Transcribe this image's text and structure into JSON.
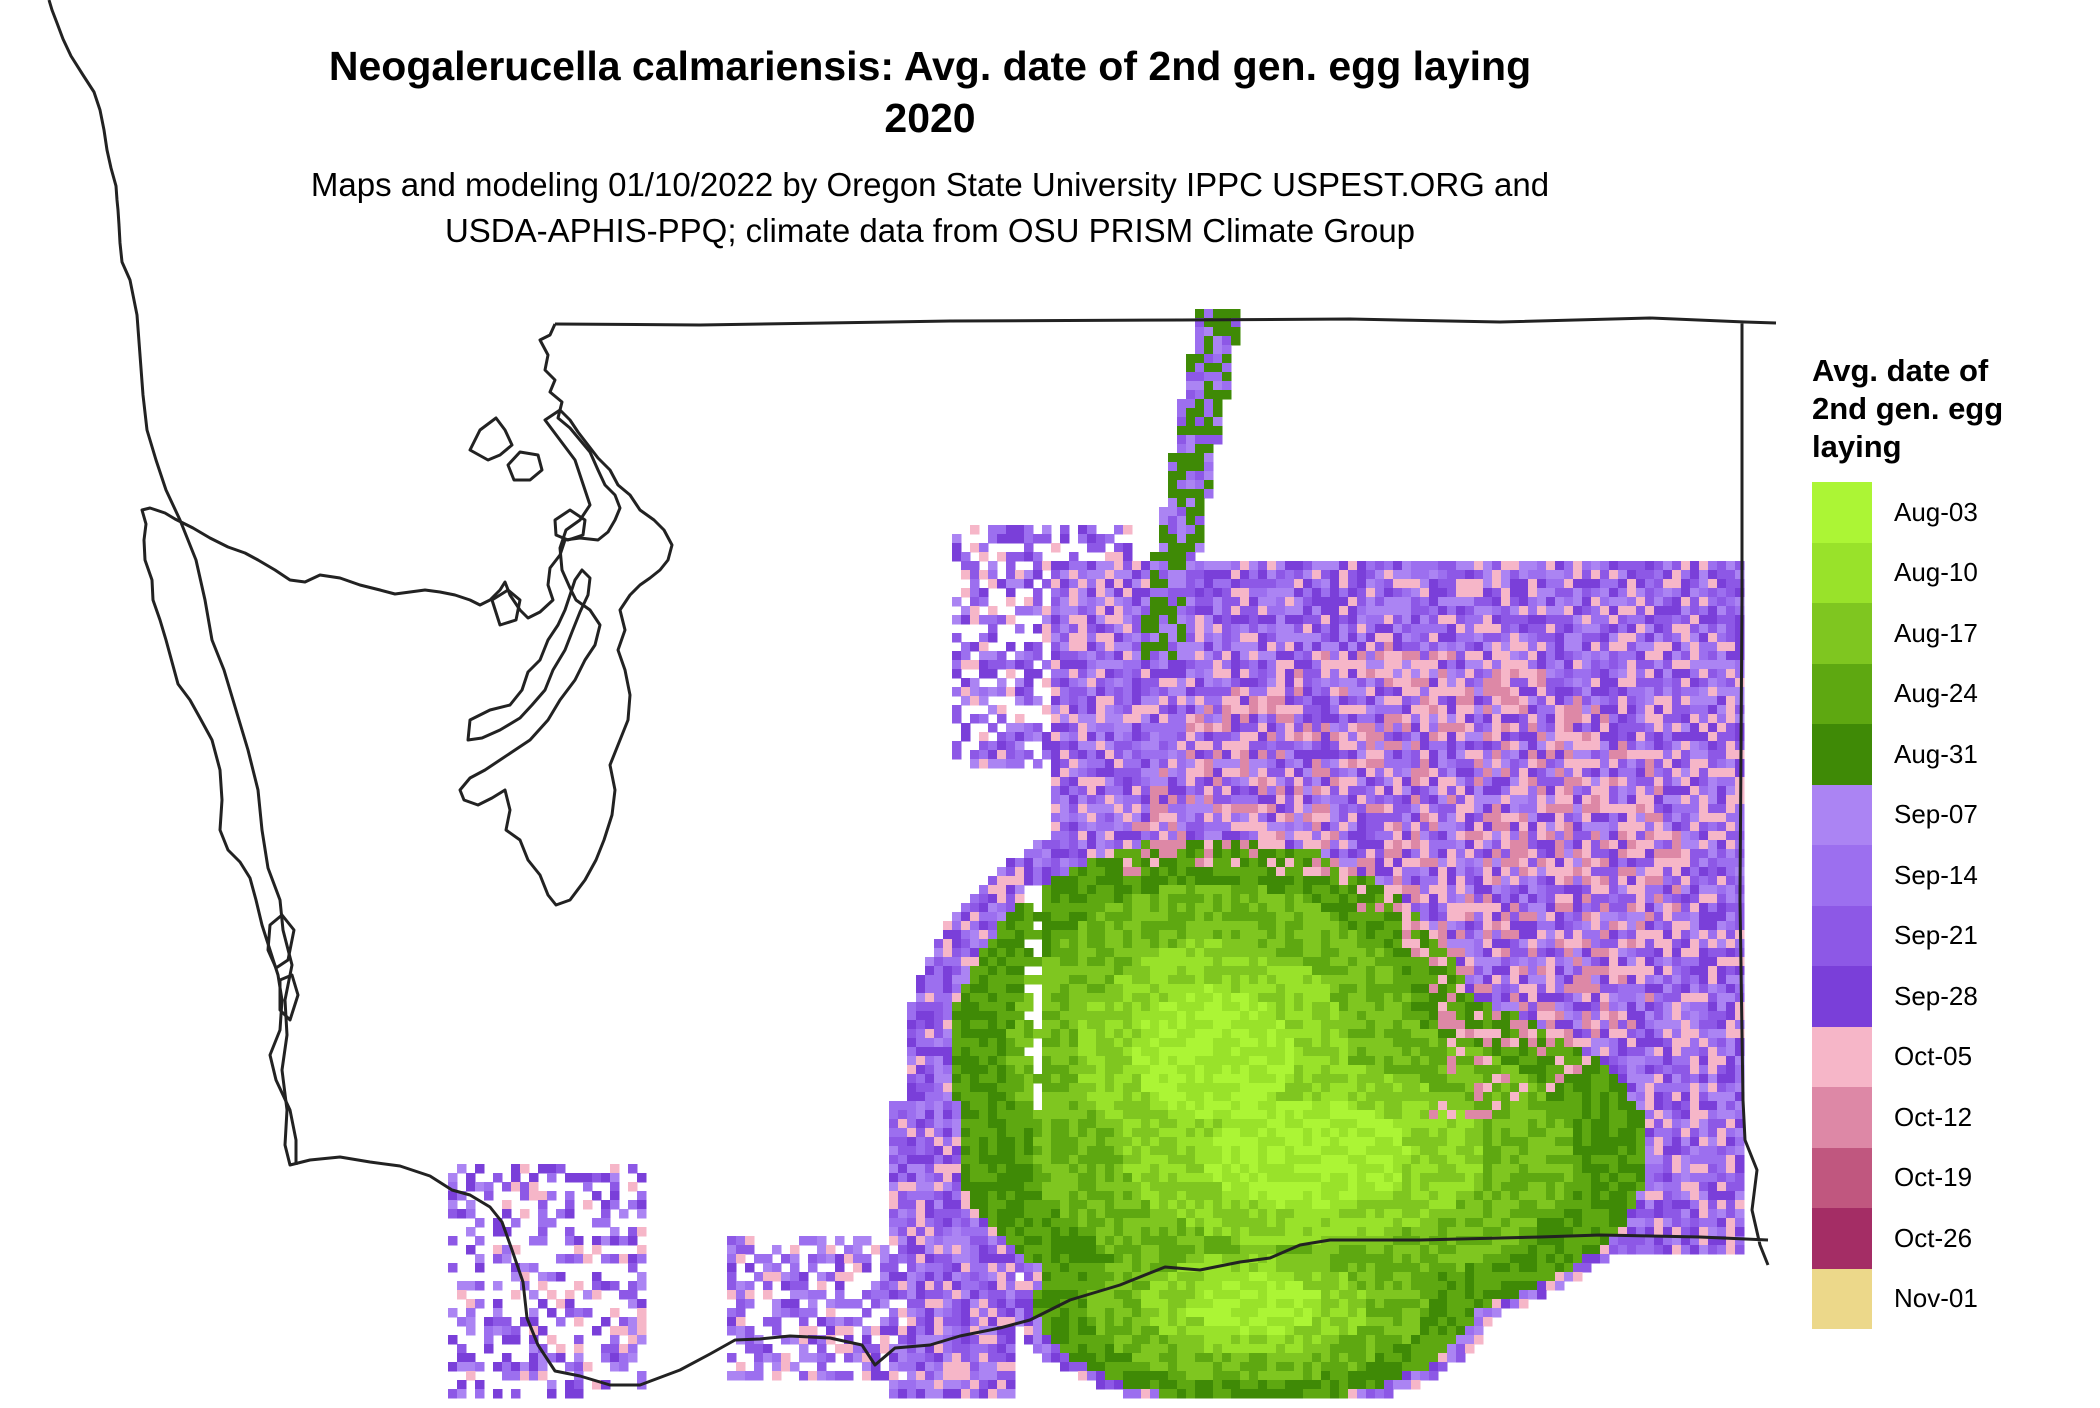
{
  "title": {
    "line1": "Neogalerucella calmariensis: Avg. date of 2nd gen. egg laying",
    "line2": "2020"
  },
  "subtitle": {
    "line1": "Maps and modeling 01/10/2022 by Oregon State University IPPC USPEST.ORG and",
    "line2": "USDA-APHIS-PPQ; climate data from OSU PRISM Climate Group"
  },
  "legend": {
    "title_lines": [
      "Avg. date of",
      "2nd gen. egg",
      "laying"
    ],
    "items": [
      {
        "label": "Aug-03",
        "color": "#acf535"
      },
      {
        "label": "Aug-10",
        "color": "#99e22a"
      },
      {
        "label": "Aug-17",
        "color": "#7fc620"
      },
      {
        "label": "Aug-24",
        "color": "#5ea811"
      },
      {
        "label": "Aug-31",
        "color": "#3f8a06"
      },
      {
        "label": "Sep-07",
        "color": "#ab84f3"
      },
      {
        "label": "Sep-14",
        "color": "#9c6fef"
      },
      {
        "label": "Sep-21",
        "color": "#8d58e6"
      },
      {
        "label": "Sep-28",
        "color": "#7a3fd9"
      },
      {
        "label": "Oct-05",
        "color": "#f6b6c8"
      },
      {
        "label": "Oct-12",
        "color": "#dd88a6"
      },
      {
        "label": "Oct-19",
        "color": "#c0577f"
      },
      {
        "label": "Oct-26",
        "color": "#a42d65"
      },
      {
        "label": "Nov-01",
        "color": "#ecd88a"
      }
    ]
  }
}
